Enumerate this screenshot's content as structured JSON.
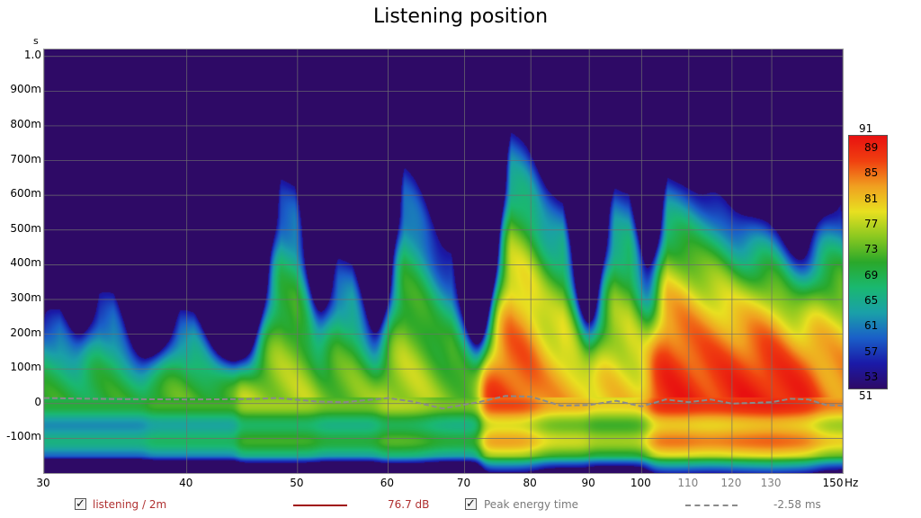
{
  "title": "Listening position",
  "chart_data": {
    "type": "heatmap",
    "title": "Listening position",
    "x_scale": "log",
    "x_unit": "Hz",
    "y_unit": "s",
    "xlim": [
      30,
      150
    ],
    "ylim": [
      -0.2,
      1.02
    ],
    "x_ticks": [
      {
        "value": 30,
        "label": "30",
        "minor": false
      },
      {
        "value": 40,
        "label": "40",
        "minor": false
      },
      {
        "value": 50,
        "label": "50",
        "minor": false
      },
      {
        "value": 60,
        "label": "60",
        "minor": false
      },
      {
        "value": 70,
        "label": "70",
        "minor": false
      },
      {
        "value": 80,
        "label": "80",
        "minor": false
      },
      {
        "value": 90,
        "label": "90",
        "minor": false
      },
      {
        "value": 100,
        "label": "100",
        "minor": false
      },
      {
        "value": 110,
        "label": "110",
        "minor": true
      },
      {
        "value": 120,
        "label": "120",
        "minor": true
      },
      {
        "value": 130,
        "label": "130",
        "minor": true
      },
      {
        "value": 150,
        "label": "150",
        "minor": false
      }
    ],
    "y_ticks": [
      {
        "value": 1.0,
        "label": "1.0"
      },
      {
        "value": 0.9,
        "label": "900m"
      },
      {
        "value": 0.8,
        "label": "800m"
      },
      {
        "value": 0.7,
        "label": "700m"
      },
      {
        "value": 0.6,
        "label": "600m"
      },
      {
        "value": 0.5,
        "label": "500m"
      },
      {
        "value": 0.4,
        "label": "400m"
      },
      {
        "value": 0.3,
        "label": "300m"
      },
      {
        "value": 0.2,
        "label": "200m"
      },
      {
        "value": 0.1,
        "label": "100m"
      },
      {
        "value": 0.0,
        "label": "0"
      },
      {
        "value": -0.1,
        "label": "-100m"
      }
    ],
    "color_scale": {
      "min": 51,
      "max": 91,
      "labels": [
        "89",
        "85",
        "81",
        "77",
        "73",
        "69",
        "65",
        "61",
        "57",
        "53"
      ],
      "min_label": "51",
      "max_label": "91",
      "colors": [
        "#2e0a66",
        "#1a1aa8",
        "#1a5fc8",
        "#1aa0a8",
        "#1ab870",
        "#2aa82a",
        "#8ac820",
        "#e8e020",
        "#f0a020",
        "#f04010",
        "#e81010"
      ]
    },
    "background_color": "#2e0a66",
    "ridges": [
      {
        "freq": 30.5,
        "top": 0.19,
        "peak_level": 70
      },
      {
        "freq": 34,
        "top": 0.25,
        "peak_level": 70
      },
      {
        "freq": 40,
        "top": 0.17,
        "peak_level": 72
      },
      {
        "freq": 49,
        "top": 0.54,
        "peak_level": 76
      },
      {
        "freq": 55,
        "top": 0.32,
        "peak_level": 74
      },
      {
        "freq": 63,
        "top": 0.59,
        "peak_level": 77
      },
      {
        "freq": 67,
        "top": 0.32,
        "peak_level": 74
      },
      {
        "freq": 78,
        "top": 0.56,
        "peak_level": 87
      },
      {
        "freq": 84,
        "top": 0.42,
        "peak_level": 82
      },
      {
        "freq": 96,
        "top": 0.49,
        "peak_level": 80
      },
      {
        "freq": 107,
        "top": 0.42,
        "peak_level": 89
      },
      {
        "freq": 115,
        "top": 0.39,
        "peak_level": 88
      },
      {
        "freq": 123,
        "top": 0.3,
        "peak_level": 89
      },
      {
        "freq": 129,
        "top": 0.33,
        "peak_level": 90
      },
      {
        "freq": 137,
        "top": 0.2,
        "peak_level": 89
      },
      {
        "freq": 147,
        "top": 0.4,
        "peak_level": 84
      }
    ],
    "peak_energy_time": {
      "x": [
        30,
        35,
        40,
        45,
        48,
        52,
        55,
        60,
        63,
        67,
        72,
        76,
        80,
        85,
        90,
        95,
        100,
        105,
        110,
        115,
        120,
        125,
        130,
        135,
        140,
        145,
        150
      ],
      "y": [
        0.016,
        0.013,
        0.012,
        0.013,
        0.016,
        0.006,
        0.004,
        0.016,
        0.006,
        -0.014,
        0.004,
        0.022,
        0.02,
        -0.006,
        -0.004,
        0.008,
        -0.008,
        0.012,
        0.004,
        0.012,
        0.0,
        0.002,
        0.004,
        0.014,
        0.012,
        -0.004,
        -0.006
      ]
    }
  },
  "legend": {
    "series_checked": "✓",
    "series_name": "listening / 2m",
    "series_value": "76.7 dB",
    "series_color": "#a01010",
    "peak_checked": "✓",
    "peak_name": "Peak energy time",
    "peak_value": "-2.58 ms",
    "peak_color": "#8a8a8a"
  }
}
